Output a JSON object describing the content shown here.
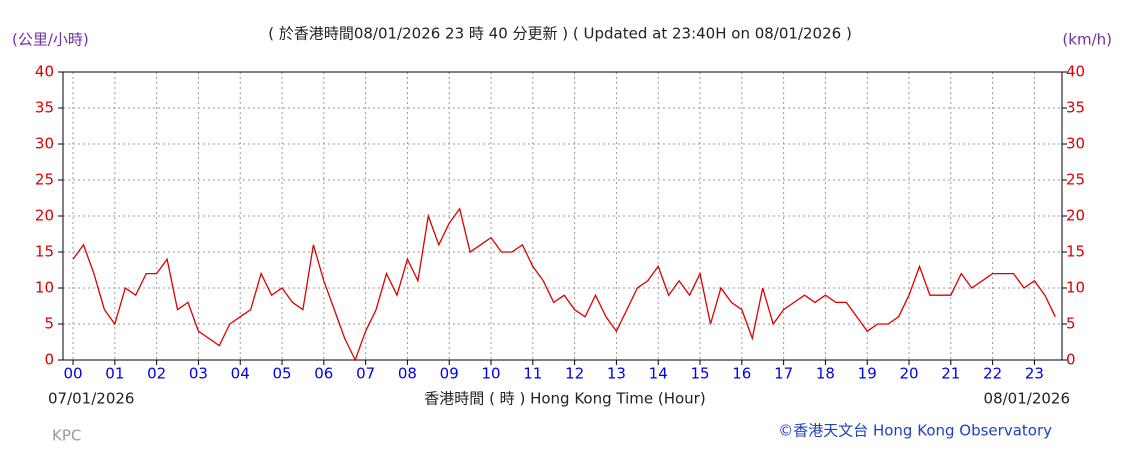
{
  "chart_data": {
    "type": "line",
    "title": "( 於香港時間08/01/2026 23 時 40 分更新 ) ( Updated at 23:40H on 08/01/2026 )",
    "y_unit_left": "(公里/小時)",
    "y_unit_right": "(km/h)",
    "x_label": "香港時間 ( 時 )  Hong Kong Time (Hour)",
    "start_date": "07/01/2026",
    "end_date": "08/01/2026",
    "station": "KPC",
    "credit": "©香港天文台 Hong Kong Observatory",
    "xlim": [
      -0.24,
      23.66
    ],
    "xticks": [
      {
        "value": 0,
        "label": "00"
      },
      {
        "value": 1,
        "label": "01"
      },
      {
        "value": 2,
        "label": "02"
      },
      {
        "value": 3,
        "label": "03"
      },
      {
        "value": 4,
        "label": "04"
      },
      {
        "value": 5,
        "label": "05"
      },
      {
        "value": 6,
        "label": "06"
      },
      {
        "value": 7,
        "label": "07"
      },
      {
        "value": 8,
        "label": "08"
      },
      {
        "value": 9,
        "label": "09"
      },
      10,
      11,
      12,
      13,
      14,
      15,
      16,
      17,
      18,
      19,
      20,
      21,
      22,
      23
    ],
    "ylim": [
      0,
      40
    ],
    "yticks": [
      0,
      5,
      10,
      15,
      20,
      25,
      30,
      35,
      40
    ],
    "grid": true,
    "x": [
      0,
      0.25,
      0.5,
      0.75,
      1,
      1.25,
      1.5,
      1.75,
      2,
      2.25,
      2.5,
      2.75,
      3,
      3.25,
      3.5,
      3.75,
      4,
      4.25,
      4.5,
      4.75,
      5,
      5.25,
      5.5,
      5.75,
      6,
      6.25,
      6.5,
      6.75,
      7,
      7.25,
      7.5,
      7.75,
      8,
      8.25,
      8.5,
      8.75,
      9,
      9.25,
      9.5,
      9.75,
      10,
      10.25,
      10.5,
      10.75,
      11,
      11.25,
      11.5,
      11.75,
      12,
      12.25,
      12.5,
      12.75,
      13,
      13.25,
      13.5,
      13.75,
      14,
      14.25,
      14.5,
      14.75,
      15,
      15.25,
      15.5,
      15.75,
      16,
      16.25,
      16.5,
      16.75,
      17,
      17.25,
      17.5,
      17.75,
      18,
      18.25,
      18.5,
      18.75,
      19,
      19.25,
      19.5,
      19.75,
      20,
      20.25,
      20.5,
      20.75,
      21,
      21.25,
      21.5,
      21.75,
      22,
      22.25,
      22.5,
      22.75,
      23,
      23.25,
      23.5
    ],
    "series": [
      {
        "color": "#dd0000",
        "values": [
          14,
          16,
          12,
          7,
          5,
          10,
          9,
          12,
          12,
          14,
          7,
          8,
          4,
          3,
          2,
          5,
          6,
          7,
          12,
          9,
          10,
          8,
          7,
          16,
          11,
          7,
          3,
          0,
          4,
          7,
          12,
          9,
          14,
          11,
          20,
          16,
          19,
          21,
          15,
          16,
          17,
          15,
          15,
          16,
          13,
          11,
          8,
          9,
          7,
          6,
          9,
          6,
          4,
          7,
          10,
          11,
          13,
          9,
          11,
          9,
          12,
          5,
          10,
          8,
          7,
          3,
          10,
          5,
          7,
          8,
          9,
          8,
          9,
          8,
          8,
          6,
          4,
          5,
          5,
          6,
          9,
          13,
          9,
          9,
          9,
          12,
          10,
          11,
          12,
          12,
          12,
          10,
          11,
          9,
          6
        ]
      }
    ]
  }
}
